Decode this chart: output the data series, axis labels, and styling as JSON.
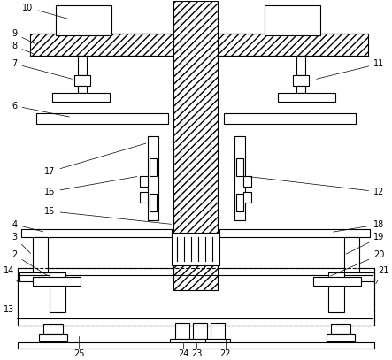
{
  "bg_color": "#ffffff",
  "line_color": "#000000",
  "fig_width": 4.43,
  "fig_height": 4.07,
  "dpi": 100
}
